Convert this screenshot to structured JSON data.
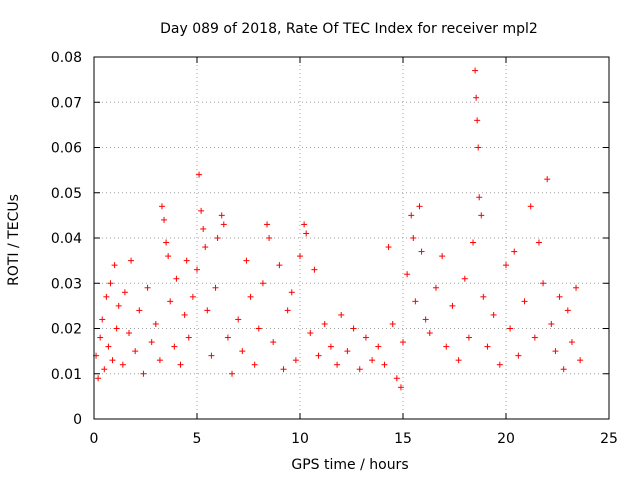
{
  "chart_data": {
    "type": "scatter",
    "title": "Day 089 of 2018, Rate Of TEC Index for receiver mpl2",
    "xlabel": "GPS time / hours",
    "ylabel": "ROTI / TECUs",
    "xlim": [
      0,
      25
    ],
    "ylim": [
      0,
      0.08
    ],
    "x_ticks": [
      "0",
      "5",
      "10",
      "15",
      "20",
      "25"
    ],
    "y_ticks": [
      "0",
      "0.01",
      "0.02",
      "0.03",
      "0.04",
      "0.05",
      "0.06",
      "0.07",
      "0.08"
    ],
    "grid": true,
    "marker": "+",
    "color": "#ff0000",
    "series": [
      {
        "name": "ROTI",
        "points": [
          [
            0.1,
            0.014
          ],
          [
            0.2,
            0.009
          ],
          [
            0.3,
            0.018
          ],
          [
            0.4,
            0.022
          ],
          [
            0.5,
            0.011
          ],
          [
            0.6,
            0.027
          ],
          [
            0.7,
            0.016
          ],
          [
            0.8,
            0.03
          ],
          [
            0.9,
            0.013
          ],
          [
            1.0,
            0.034
          ],
          [
            1.1,
            0.02
          ],
          [
            1.2,
            0.025
          ],
          [
            1.4,
            0.012
          ],
          [
            1.5,
            0.028
          ],
          [
            1.7,
            0.019
          ],
          [
            1.8,
            0.035
          ],
          [
            2.0,
            0.015
          ],
          [
            2.2,
            0.024
          ],
          [
            2.4,
            0.01
          ],
          [
            2.6,
            0.029
          ],
          [
            2.8,
            0.017
          ],
          [
            3.0,
            0.021
          ],
          [
            3.2,
            0.013
          ],
          [
            3.3,
            0.047
          ],
          [
            3.4,
            0.044
          ],
          [
            3.5,
            0.039
          ],
          [
            3.6,
            0.036
          ],
          [
            3.7,
            0.026
          ],
          [
            3.9,
            0.016
          ],
          [
            4.0,
            0.031
          ],
          [
            4.2,
            0.012
          ],
          [
            4.4,
            0.023
          ],
          [
            4.5,
            0.035
          ],
          [
            4.6,
            0.018
          ],
          [
            4.8,
            0.027
          ],
          [
            5.0,
            0.033
          ],
          [
            5.1,
            0.054
          ],
          [
            5.2,
            0.046
          ],
          [
            5.3,
            0.042
          ],
          [
            5.4,
            0.038
          ],
          [
            5.5,
            0.024
          ],
          [
            5.7,
            0.014
          ],
          [
            5.9,
            0.029
          ],
          [
            6.0,
            0.04
          ],
          [
            6.2,
            0.045
          ],
          [
            6.3,
            0.043
          ],
          [
            6.5,
            0.018
          ],
          [
            6.7,
            0.01
          ],
          [
            7.0,
            0.022
          ],
          [
            7.2,
            0.015
          ],
          [
            7.4,
            0.035
          ],
          [
            7.6,
            0.027
          ],
          [
            7.8,
            0.012
          ],
          [
            8.0,
            0.02
          ],
          [
            8.2,
            0.03
          ],
          [
            8.4,
            0.043
          ],
          [
            8.5,
            0.04
          ],
          [
            8.7,
            0.017
          ],
          [
            9.0,
            0.034
          ],
          [
            9.2,
            0.011
          ],
          [
            9.4,
            0.024
          ],
          [
            9.6,
            0.028
          ],
          [
            9.8,
            0.013
          ],
          [
            10.0,
            0.036
          ],
          [
            10.2,
            0.043
          ],
          [
            10.3,
            0.041
          ],
          [
            10.5,
            0.019
          ],
          [
            10.7,
            0.033
          ],
          [
            10.9,
            0.014
          ],
          [
            11.2,
            0.021
          ],
          [
            11.5,
            0.016
          ],
          [
            11.8,
            0.012
          ],
          [
            12.0,
            0.023
          ],
          [
            12.3,
            0.015
          ],
          [
            12.6,
            0.02
          ],
          [
            12.9,
            0.011
          ],
          [
            13.2,
            0.018
          ],
          [
            13.5,
            0.013
          ],
          [
            13.8,
            0.016
          ],
          [
            14.1,
            0.012
          ],
          [
            14.3,
            0.038
          ],
          [
            14.5,
            0.021
          ],
          [
            14.7,
            0.009
          ],
          [
            14.9,
            0.007
          ],
          [
            15.0,
            0.017
          ],
          [
            15.2,
            0.032
          ],
          [
            15.4,
            0.045
          ],
          [
            15.5,
            0.04
          ],
          [
            15.6,
            0.026
          ],
          [
            15.8,
            0.047
          ],
          [
            15.9,
            0.037
          ],
          [
            16.1,
            0.022
          ],
          [
            16.3,
            0.019
          ],
          [
            16.6,
            0.029
          ],
          [
            16.9,
            0.036
          ],
          [
            17.1,
            0.016
          ],
          [
            17.4,
            0.025
          ],
          [
            17.7,
            0.013
          ],
          [
            18.0,
            0.031
          ],
          [
            18.2,
            0.018
          ],
          [
            18.4,
            0.039
          ],
          [
            18.5,
            0.077
          ],
          [
            18.55,
            0.071
          ],
          [
            18.6,
            0.066
          ],
          [
            18.65,
            0.06
          ],
          [
            18.7,
            0.049
          ],
          [
            18.8,
            0.045
          ],
          [
            18.9,
            0.027
          ],
          [
            19.1,
            0.016
          ],
          [
            19.4,
            0.023
          ],
          [
            19.7,
            0.012
          ],
          [
            20.0,
            0.034
          ],
          [
            20.2,
            0.02
          ],
          [
            20.4,
            0.037
          ],
          [
            20.6,
            0.014
          ],
          [
            20.9,
            0.026
          ],
          [
            21.2,
            0.047
          ],
          [
            21.4,
            0.018
          ],
          [
            21.6,
            0.039
          ],
          [
            21.8,
            0.03
          ],
          [
            22.0,
            0.053
          ],
          [
            22.2,
            0.021
          ],
          [
            22.4,
            0.015
          ],
          [
            22.6,
            0.027
          ],
          [
            22.8,
            0.011
          ],
          [
            23.0,
            0.024
          ],
          [
            23.2,
            0.017
          ],
          [
            23.4,
            0.029
          ],
          [
            23.6,
            0.013
          ]
        ]
      }
    ]
  }
}
